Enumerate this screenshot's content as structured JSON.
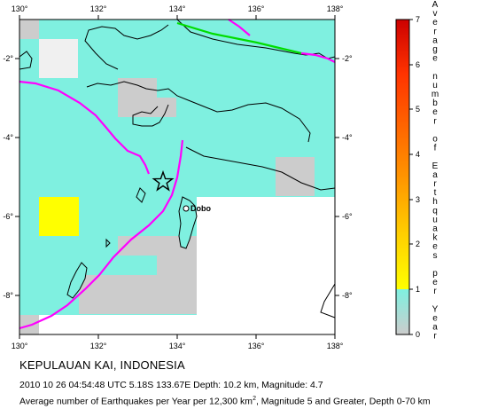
{
  "map": {
    "lon_ticks": [
      "130°",
      "132°",
      "134°",
      "136°",
      "138°"
    ],
    "lat_ticks": [
      "-2°",
      "-4°",
      "-6°",
      "-8°"
    ],
    "city_label": "Dobo",
    "land_color": "#ffffff",
    "grid_low_color": "#7ff0e0",
    "grid_zero_color": "#cccccc",
    "grid_high_color": "#ffff00",
    "plate_boundary_color": "#ff00ff",
    "transform_boundary_color": "#00dd00",
    "epicenter_icon": "star-icon"
  },
  "colorbar": {
    "title": "Average number of Earthquakes per Year",
    "ticks": [
      "0",
      "1",
      "2",
      "3",
      "4",
      "5",
      "6",
      "7"
    ],
    "colors": [
      "#7ff0e0",
      "#ffff00",
      "#ffd000",
      "#ff9900",
      "#ff6600",
      "#ff3300",
      "#ee1100",
      "#cc0000"
    ]
  },
  "caption": {
    "title": "KEPULAUAN KAI, INDONESIA",
    "event": "2010 10 26 04:54:48 UTC 5.18S 133.67E Depth: 10.2 km, Magnitude: 4.7",
    "desc_prefix": "Average number of Earthquakes per Year per 12,300 km",
    "desc_sup": "2",
    "desc_suffix": ", Magnitude 5 and Greater, Depth 0-70 km"
  }
}
